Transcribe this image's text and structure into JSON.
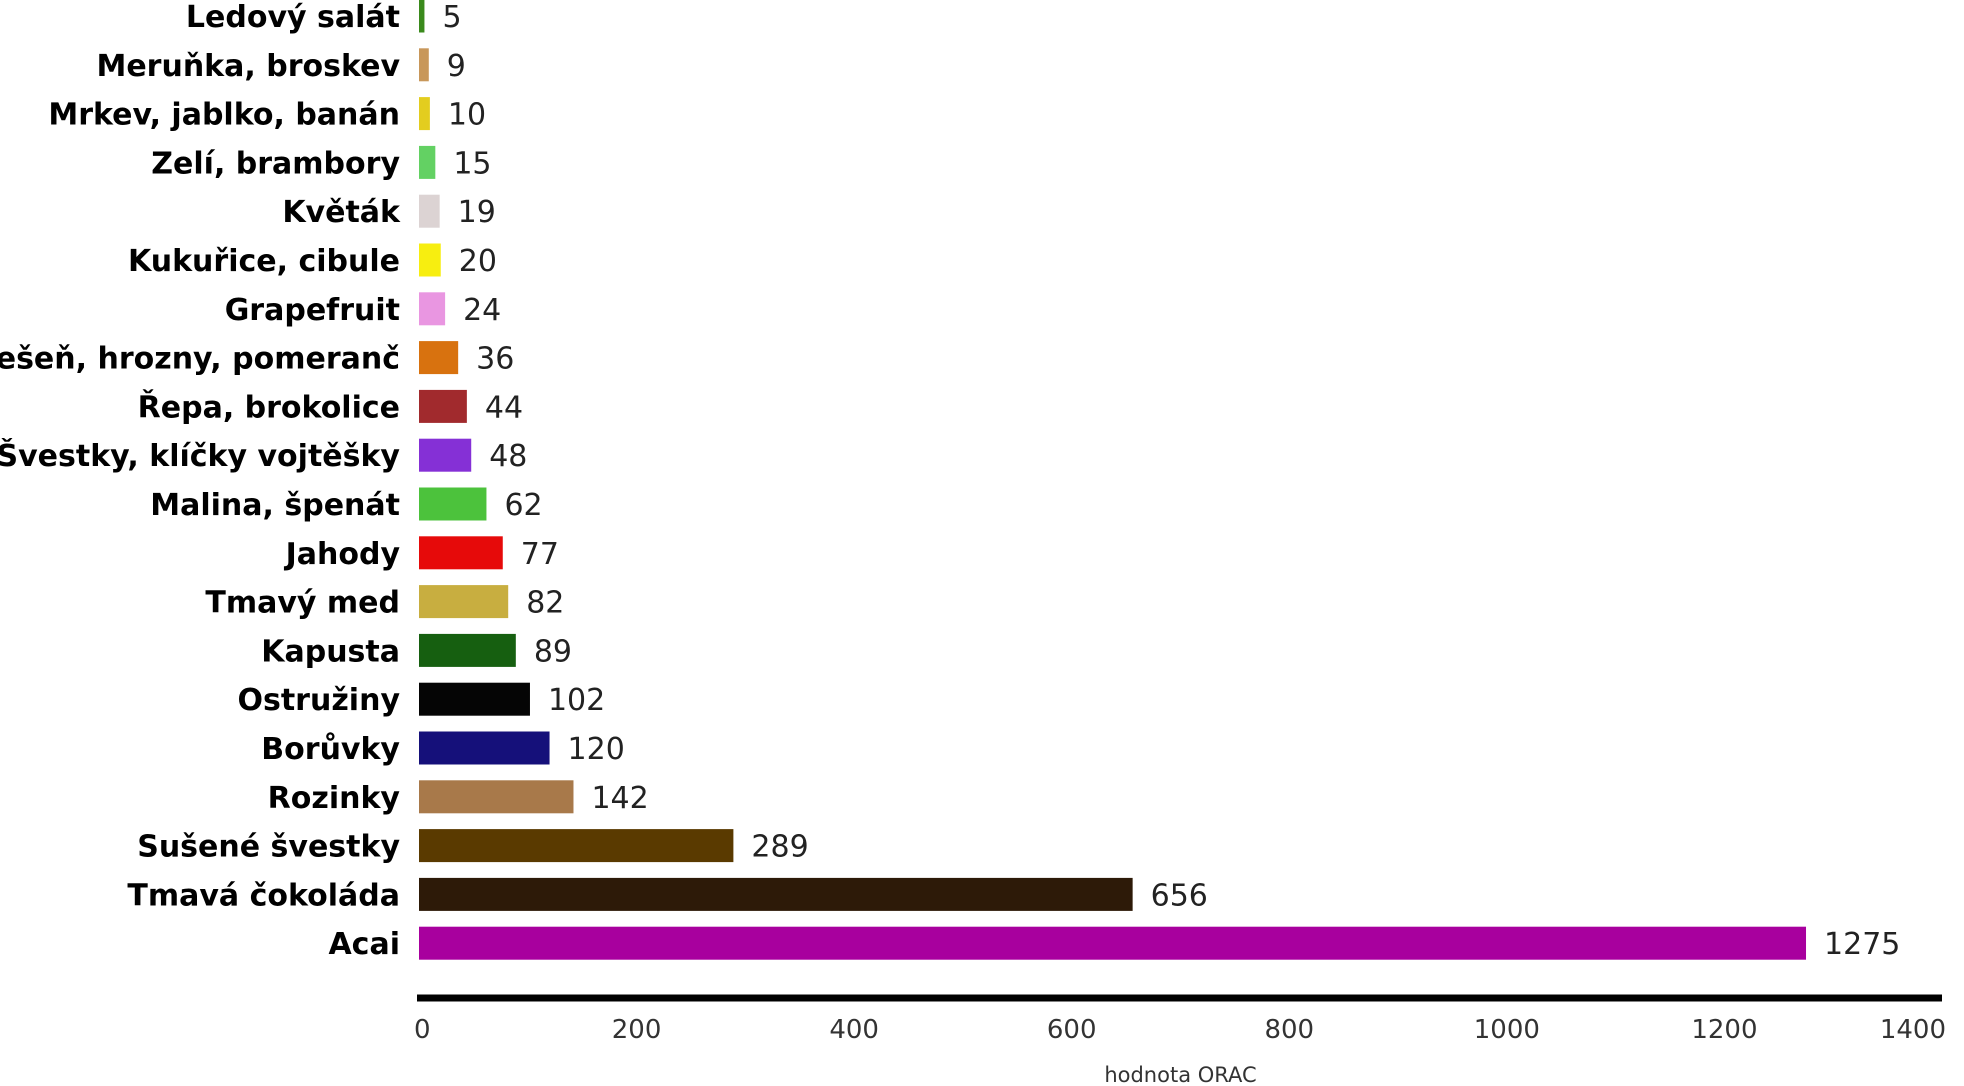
{
  "chart_data": {
    "type": "bar",
    "orientation": "horizontal",
    "categories": [
      "Ledový salát",
      "Meruňka, broskev",
      "Mrkev, jablko, banán",
      "Zelí, brambory",
      "Květák",
      "Kukuřice, cibule",
      "Grapefruit",
      "Třešeň, hrozny, pomeranč",
      "Řepa, brokolice",
      "Švestky, klíčky vojtěšky",
      "Malina, špenát",
      "Jahody",
      "Tmavý med",
      "Kapusta",
      "Ostružiny",
      "Borůvky",
      "Rozinky",
      "Sušené švestky",
      "Tmavá čokoláda",
      "Acai"
    ],
    "values": [
      5,
      9,
      10,
      15,
      19,
      20,
      24,
      36,
      44,
      48,
      62,
      77,
      82,
      89,
      102,
      120,
      142,
      289,
      656,
      1275
    ],
    "colors": [
      "#3a8a1c",
      "#c8975a",
      "#e3cd1f",
      "#63d163",
      "#dcd3d3",
      "#f7ee10",
      "#e996e1",
      "#d8720f",
      "#a12a2d",
      "#8530d6",
      "#4cc23c",
      "#e60a0a",
      "#c8ae40",
      "#165f10",
      "#050505",
      "#15107a",
      "#a8794a",
      "#5a3a00",
      "#2d1a08",
      "#a8009e"
    ],
    "xlabel": "hodnota ORAC",
    "ylabel": "",
    "xlim": [
      0,
      1400
    ],
    "xticks": [
      0,
      200,
      400,
      600,
      800,
      1000,
      1200,
      1400
    ],
    "grid": false,
    "legend": "none"
  }
}
